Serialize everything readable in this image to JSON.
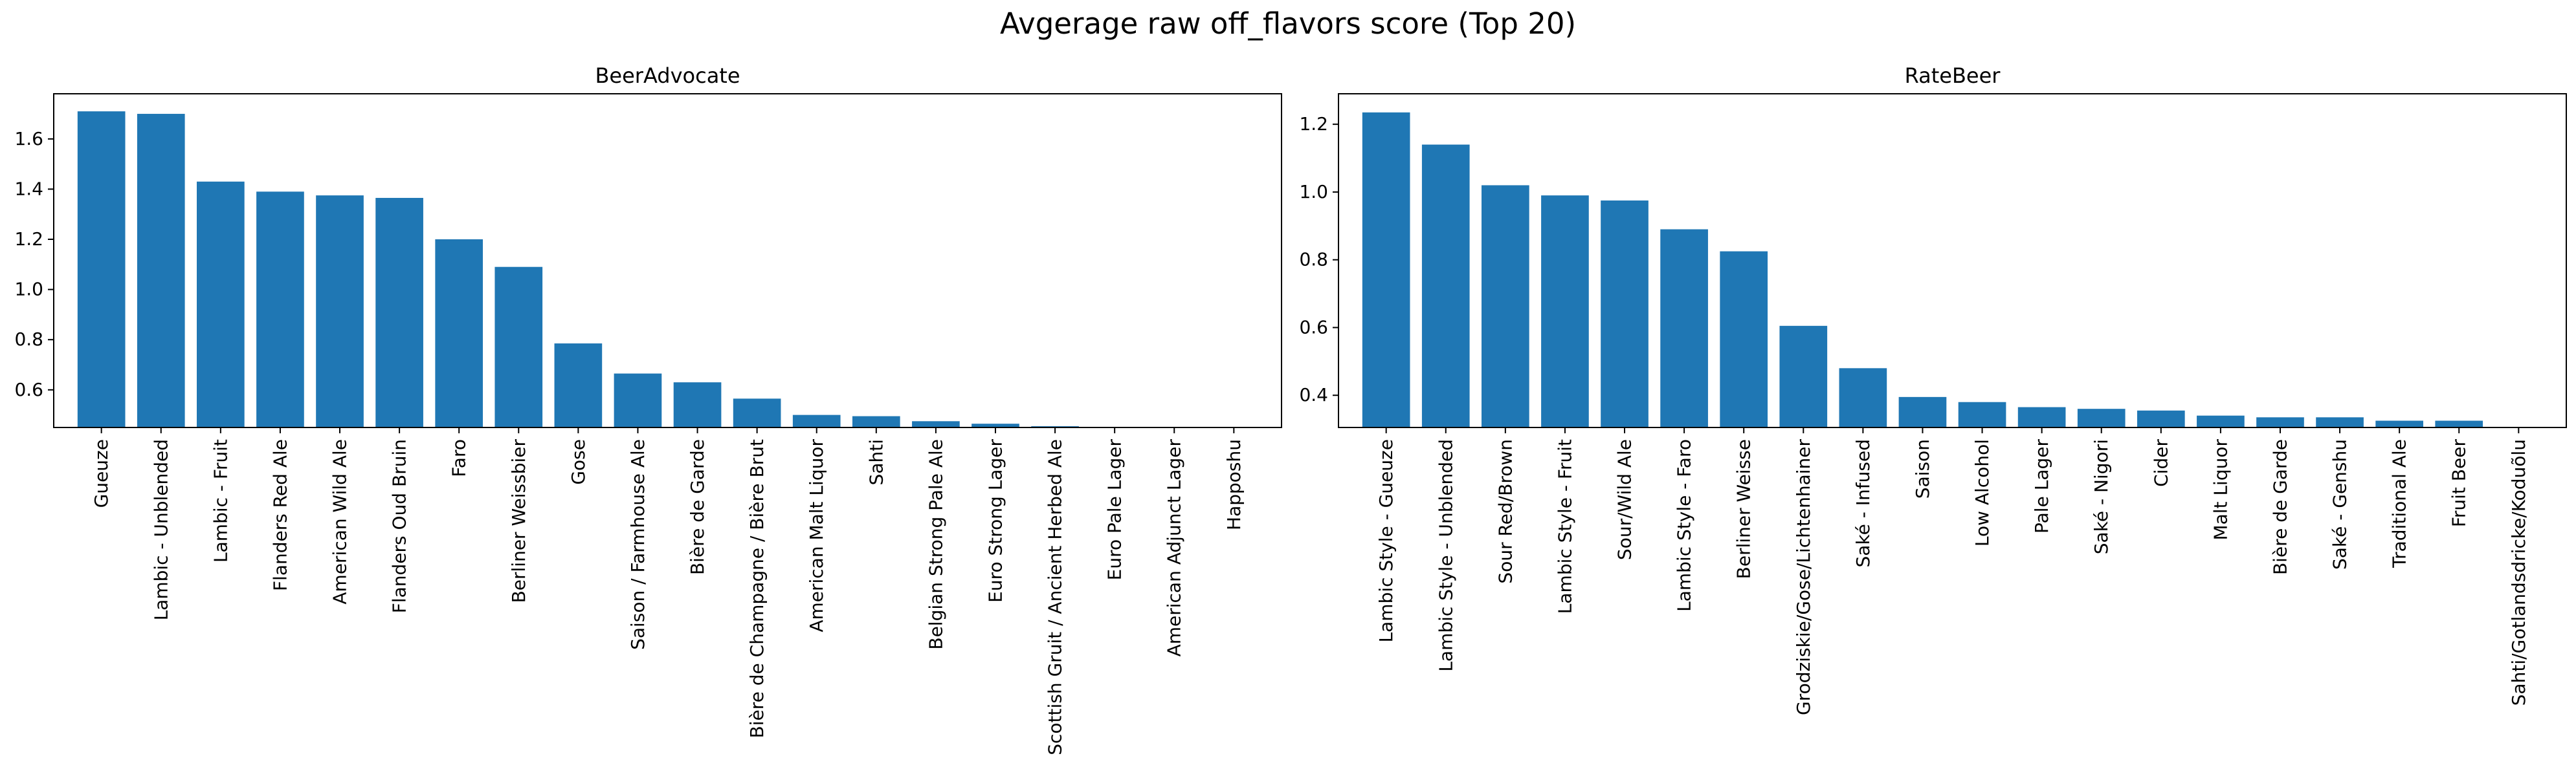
{
  "figure": {
    "title": "Avgerage raw off_flavors score (Top 20)"
  },
  "chart_data": [
    {
      "type": "bar",
      "title": "BeerAdvocate",
      "xlabel": "",
      "ylabel": "",
      "color": "#1f77b4",
      "ylim": [
        0.45,
        1.78
      ],
      "yticks": [
        0.6,
        0.8,
        1.0,
        1.2,
        1.4,
        1.6
      ],
      "ytick_labels": [
        "0.6",
        "0.8",
        "1.0",
        "1.2",
        "1.4",
        "1.6"
      ],
      "grid": false,
      "categories": [
        "Gueuze",
        "Lambic - Unblended",
        "Lambic - Fruit",
        "Flanders Red Ale",
        "American Wild Ale",
        "Flanders Oud Bruin",
        "Faro",
        "Berliner Weissbier",
        "Gose",
        "Saison / Farmhouse Ale",
        "Bière de Garde",
        "Bière de Champagne / Bière Brut",
        "American Malt Liquor",
        "Sahti",
        "Belgian Strong Pale Ale",
        "Euro Strong Lager",
        "Scottish Gruit / Ancient Herbed Ale",
        "Euro Pale Lager",
        "American Adjunct Lager",
        "Happoshu"
      ],
      "values": [
        1.71,
        1.7,
        1.43,
        1.39,
        1.375,
        1.365,
        1.2,
        1.09,
        0.785,
        0.665,
        0.63,
        0.565,
        0.5,
        0.495,
        0.475,
        0.465,
        0.455,
        0.448,
        0.445,
        0.44
      ]
    },
    {
      "type": "bar",
      "title": "RateBeer",
      "xlabel": "",
      "ylabel": "",
      "color": "#1f77b4",
      "ylim": [
        0.305,
        1.29
      ],
      "yticks": [
        0.4,
        0.6,
        0.8,
        1.0,
        1.2
      ],
      "ytick_labels": [
        "0.4",
        "0.6",
        "0.8",
        "1.0",
        "1.2"
      ],
      "grid": false,
      "categories": [
        "Lambic Style - Gueuze",
        "Lambic Style - Unblended",
        "Sour Red/Brown",
        "Lambic Style - Fruit",
        "Sour/Wild Ale",
        "Lambic Style - Faro",
        "Berliner Weisse",
        "Grodziskie/Gose/Lichtenhainer",
        "Saké - Infused",
        "Saison",
        "Low Alcohol",
        "Pale Lager",
        "Saké - Nigori",
        "Cider",
        "Malt Liquor",
        "Bière de Garde",
        "Saké - Genshu",
        "Traditional Ale",
        "Fruit Beer",
        "Sahti/Gotlandsdricke/Koduõlu"
      ],
      "values": [
        1.235,
        1.14,
        1.02,
        0.99,
        0.975,
        0.89,
        0.825,
        0.605,
        0.48,
        0.395,
        0.38,
        0.365,
        0.36,
        0.355,
        0.34,
        0.335,
        0.335,
        0.325,
        0.325,
        0.305
      ]
    }
  ]
}
